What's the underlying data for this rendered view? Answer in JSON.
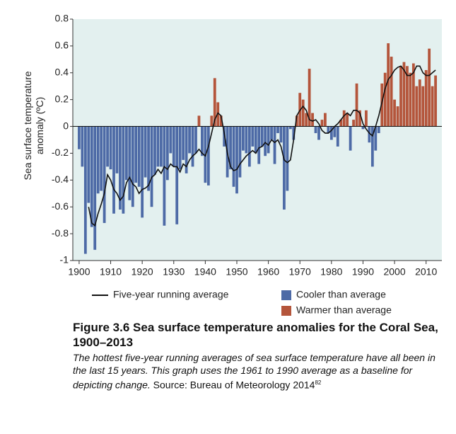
{
  "chart_data": {
    "type": "bar",
    "y_label": [
      "Sea surface temperature",
      "anomaly (ºC)"
    ],
    "x": [
      1900,
      1901,
      1902,
      1903,
      1904,
      1905,
      1906,
      1907,
      1908,
      1909,
      1910,
      1911,
      1912,
      1913,
      1914,
      1915,
      1916,
      1917,
      1918,
      1919,
      1920,
      1921,
      1922,
      1923,
      1924,
      1925,
      1926,
      1927,
      1928,
      1929,
      1930,
      1931,
      1932,
      1933,
      1934,
      1935,
      1936,
      1937,
      1938,
      1939,
      1940,
      1941,
      1942,
      1943,
      1944,
      1945,
      1946,
      1947,
      1948,
      1949,
      1950,
      1951,
      1952,
      1953,
      1954,
      1955,
      1956,
      1957,
      1958,
      1959,
      1960,
      1961,
      1962,
      1963,
      1964,
      1965,
      1966,
      1967,
      1968,
      1969,
      1970,
      1971,
      1972,
      1973,
      1974,
      1975,
      1976,
      1977,
      1978,
      1979,
      1980,
      1981,
      1982,
      1983,
      1984,
      1985,
      1986,
      1987,
      1988,
      1989,
      1990,
      1991,
      1992,
      1993,
      1994,
      1995,
      1996,
      1997,
      1998,
      1999,
      2000,
      2001,
      2002,
      2003,
      2004,
      2005,
      2006,
      2007,
      2008,
      2009,
      2010,
      2011,
      2012,
      2013
    ],
    "values": [
      -0.17,
      -0.3,
      -0.95,
      -0.57,
      -0.75,
      -0.92,
      -0.5,
      -0.48,
      -0.72,
      -0.3,
      -0.32,
      -0.65,
      -0.35,
      -0.62,
      -0.65,
      -0.4,
      -0.55,
      -0.6,
      -0.42,
      -0.45,
      -0.68,
      -0.38,
      -0.48,
      -0.6,
      -0.36,
      -0.3,
      -0.3,
      -0.74,
      -0.4,
      -0.2,
      -0.3,
      -0.73,
      -0.32,
      -0.25,
      -0.35,
      -0.2,
      -0.3,
      -0.2,
      0.08,
      -0.22,
      -0.42,
      -0.44,
      0.08,
      0.36,
      0.18,
      0.08,
      -0.15,
      -0.38,
      -0.32,
      -0.45,
      -0.5,
      -0.38,
      -0.18,
      -0.2,
      -0.3,
      -0.15,
      -0.2,
      -0.28,
      -0.15,
      -0.22,
      -0.2,
      -0.1,
      -0.28,
      -0.05,
      -0.12,
      -0.62,
      -0.48,
      -0.02,
      -0.1,
      0.08,
      0.25,
      0.2,
      0.1,
      0.43,
      0.1,
      -0.05,
      -0.1,
      0.05,
      0.1,
      -0.05,
      -0.1,
      -0.08,
      -0.15,
      0.05,
      0.12,
      0.1,
      -0.18,
      0.05,
      0.32,
      0.12,
      -0.02,
      0.12,
      -0.12,
      -0.3,
      -0.18,
      -0.05,
      0.32,
      0.4,
      0.62,
      0.52,
      0.2,
      0.15,
      0.45,
      0.48,
      0.45,
      0.4,
      0.47,
      0.3,
      0.35,
      0.3,
      0.42,
      0.58,
      0.3,
      0.38
    ],
    "bar_legend": {
      "negative": {
        "name": "Cooler than average",
        "color": "#4d6aa6"
      },
      "positive": {
        "name": "Warmer than average",
        "color": "#b4553b"
      }
    },
    "line": {
      "name": "Five-year running average",
      "color": "#111111",
      "values": [
        null,
        null,
        null,
        -0.6,
        -0.72,
        -0.74,
        -0.65,
        -0.58,
        -0.5,
        -0.36,
        -0.4,
        -0.47,
        -0.5,
        -0.55,
        -0.52,
        -0.42,
        -0.38,
        -0.43,
        -0.45,
        -0.5,
        -0.47,
        -0.46,
        -0.44,
        -0.38,
        -0.36,
        -0.32,
        -0.35,
        -0.3,
        -0.32,
        -0.28,
        -0.3,
        -0.3,
        -0.34,
        -0.28,
        -0.3,
        -0.25,
        -0.22,
        -0.2,
        -0.17,
        -0.2,
        -0.22,
        -0.15,
        -0.05,
        0.05,
        0.1,
        0.08,
        -0.05,
        -0.2,
        -0.3,
        -0.33,
        -0.32,
        -0.28,
        -0.25,
        -0.22,
        -0.2,
        -0.18,
        -0.2,
        -0.16,
        -0.15,
        -0.12,
        -0.14,
        -0.1,
        -0.12,
        -0.1,
        -0.15,
        -0.25,
        -0.27,
        -0.25,
        -0.1,
        0.08,
        0.12,
        0.15,
        0.12,
        0.05,
        0.04,
        0.05,
        0.02,
        -0.03,
        -0.05,
        -0.05,
        -0.03,
        0,
        0.02,
        0.05,
        0.08,
        0.1,
        0.08,
        0.12,
        0.12,
        0.1,
        0.02,
        -0.02,
        -0.05,
        -0.07,
        0,
        0.08,
        0.18,
        0.28,
        0.35,
        0.38,
        0.42,
        0.44,
        0.45,
        0.42,
        0.38,
        0.38,
        0.4,
        0.45,
        0.45,
        0.4,
        0.38,
        0.38,
        0.4,
        0.42
      ]
    },
    "xlim": [
      1898,
      2015
    ],
    "xticks": [
      1900,
      1910,
      1920,
      1930,
      1940,
      1950,
      1960,
      1970,
      1980,
      1990,
      2000,
      2010
    ],
    "ylim": [
      -1,
      0.8
    ],
    "yticks": [
      0.8,
      0.6,
      0.4,
      0.2,
      0,
      -0.2,
      -0.4,
      -0.6,
      -0.8,
      -1
    ],
    "background": "#e3f0ef",
    "grid": false
  },
  "caption": {
    "title": "Figure 3.6 Sea surface temperature anomalies for the Coral Sea, 1900–2013",
    "italic": "The hottest five-year running averages of sea surface temperature have all been in the last 15 years. This graph uses the 1961 to 1990 average as a baseline for depicting change.",
    "source": "Source: Bureau of Meteorology 2014",
    "reference": "82"
  }
}
